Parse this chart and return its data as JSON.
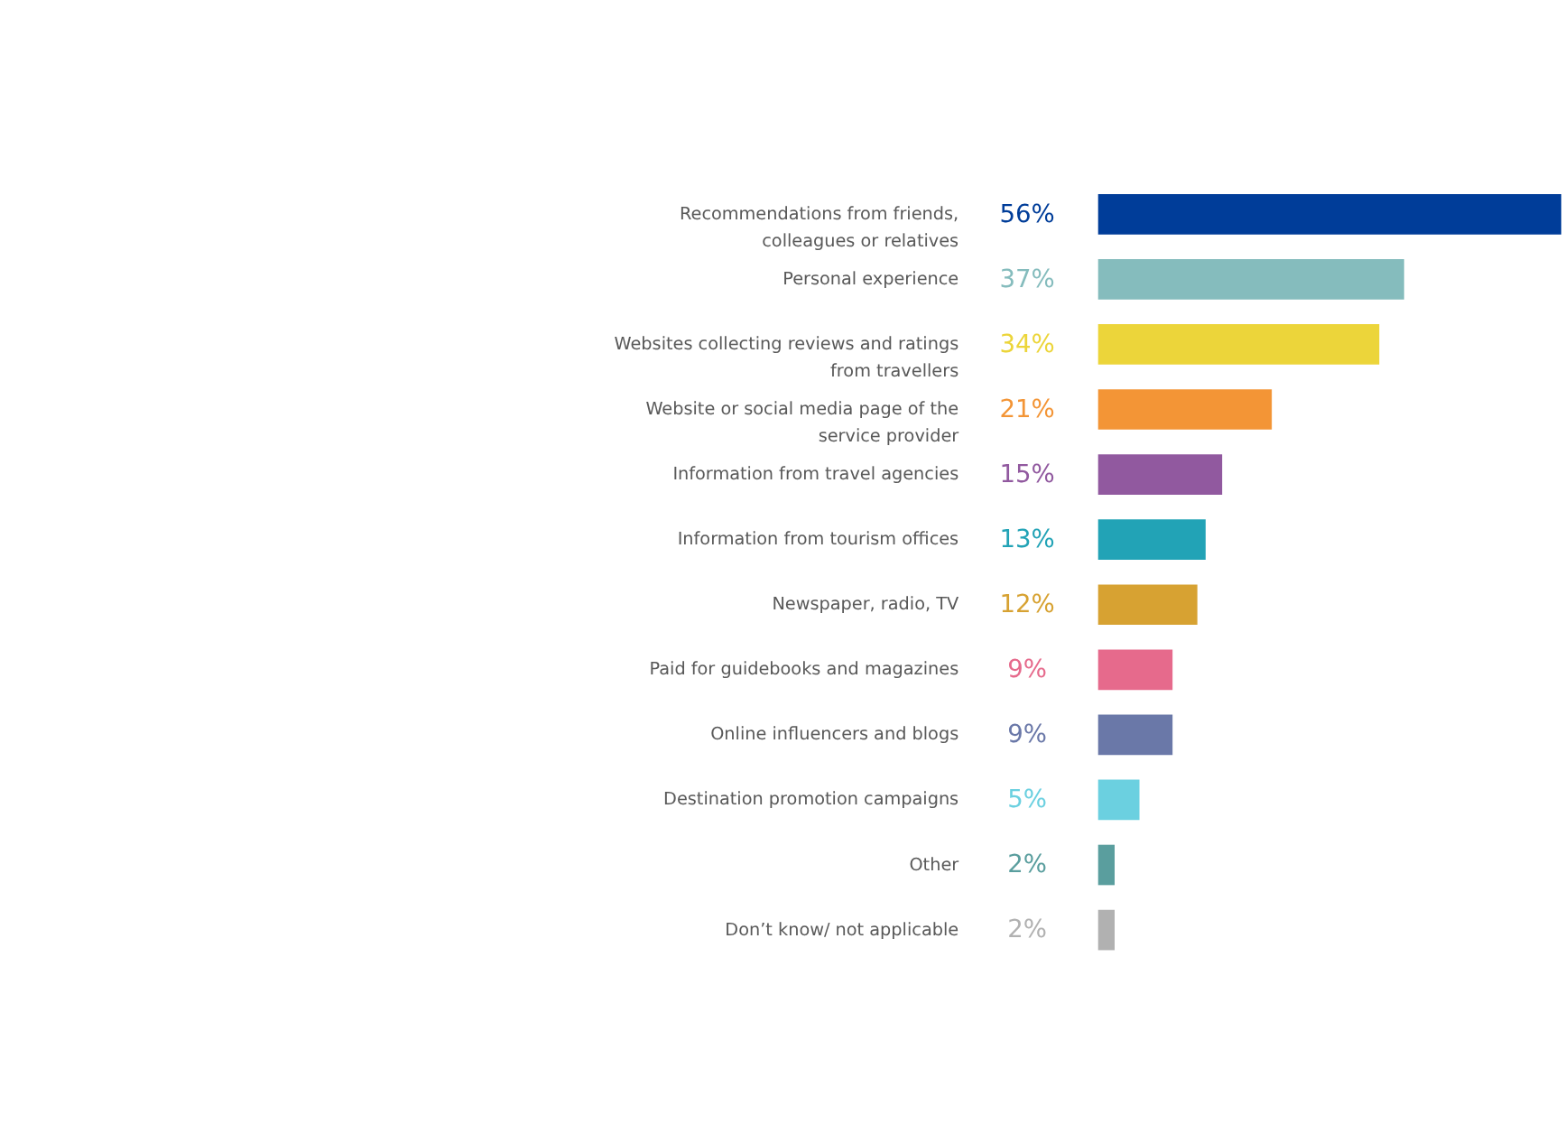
{
  "chart_data": {
    "type": "bar",
    "orientation": "horizontal",
    "categories": [
      "Recommendations from friends, colleagues or relatives",
      "Personal experience",
      "Websites collecting reviews and ratings from travellers",
      "Website or social media page of the service provider",
      "Information from travel agencies",
      "Information from tourism offices",
      "Newspaper, radio, TV",
      "Paid for guidebooks and magazines",
      "Online influencers and blogs",
      "Destination promotion campaigns",
      "Other",
      "Don’t know/ not applicable"
    ],
    "values": [
      56,
      37,
      34,
      21,
      15,
      13,
      12,
      9,
      9,
      5,
      2,
      2
    ],
    "value_labels": [
      "56%",
      "37%",
      "34%",
      "21%",
      "15%",
      "13%",
      "12%",
      "9%",
      "9%",
      "5%",
      "2%",
      "2%"
    ],
    "colors": [
      "#003d99",
      "#85bcbd",
      "#ecd53a",
      "#f39536",
      "#91599f",
      "#22a3b6",
      "#d7a232",
      "#e66a8c",
      "#6a78a8",
      "#6bd0e0",
      "#5a9e9e",
      "#b1b1b1"
    ],
    "grid": false,
    "legend": false
  }
}
